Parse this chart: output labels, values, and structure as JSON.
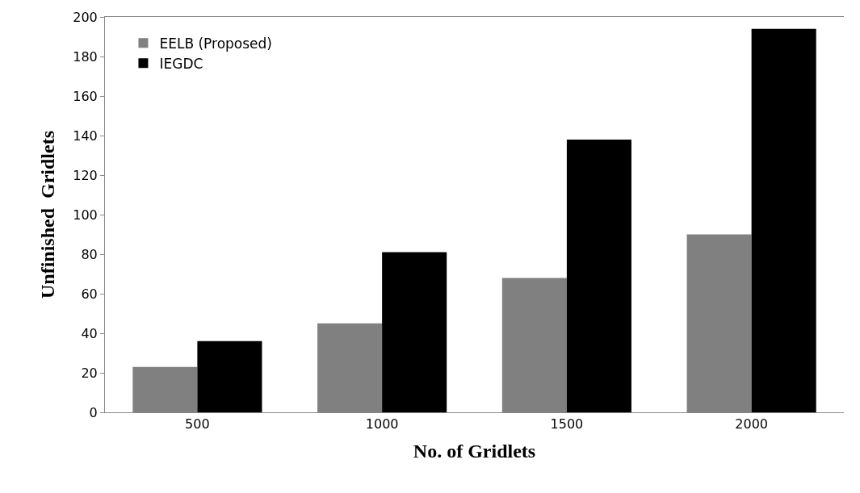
{
  "chart_data": {
    "type": "bar",
    "xlabel": "No. of Gridlets",
    "ylabel": "Unfinished  Gridlets",
    "categories": [
      "500",
      "1000",
      "1500",
      "2000"
    ],
    "series": [
      {
        "name": "EELB (Proposed)",
        "color": "#808080",
        "values": [
          23,
          45,
          68,
          90
        ]
      },
      {
        "name": "IEGDC",
        "color": "#000000",
        "values": [
          36,
          81,
          138,
          194
        ]
      }
    ],
    "ylim": [
      0,
      200
    ],
    "yticks": [
      0,
      20,
      40,
      60,
      80,
      100,
      120,
      140,
      160,
      180,
      200
    ],
    "legend": "top left"
  }
}
